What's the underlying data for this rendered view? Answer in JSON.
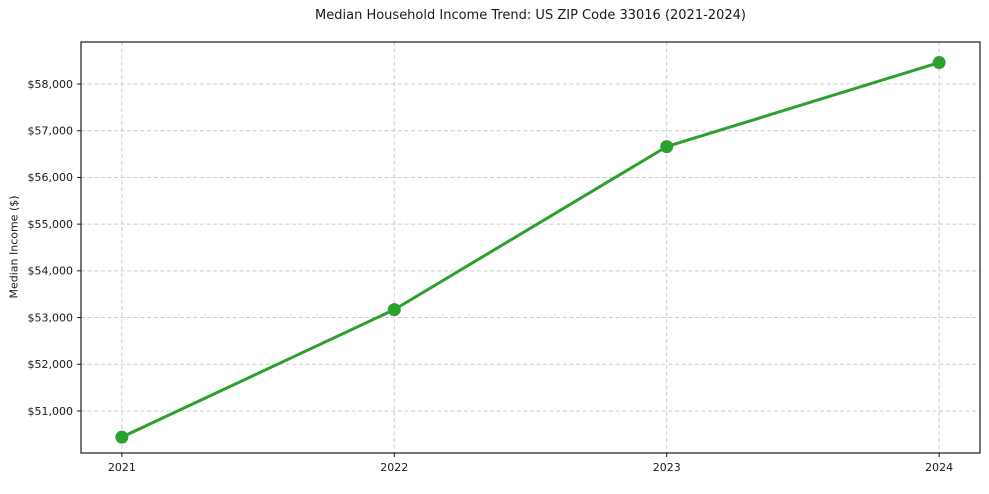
{
  "figure": {
    "background": "#ffffff",
    "frame_color": "#1a1a1a",
    "text_color": "#1a1a1a"
  },
  "chart_data": {
    "type": "line",
    "title": "Median Household Income Trend: US ZIP Code 33016 (2021-2024)",
    "xlabel": "",
    "ylabel": "Median Income ($)",
    "x": [
      2021,
      2022,
      2023,
      2024
    ],
    "series": [
      {
        "name": "Median Household Income",
        "values": [
          50440,
          53170,
          56660,
          58460
        ],
        "color": "#2ca02c",
        "marker": "circle",
        "line_width": 3,
        "marker_radius": 6.5
      }
    ],
    "xtick_labels": [
      "2021",
      "2022",
      "2023",
      "2024"
    ],
    "ytick_values": [
      51000,
      52000,
      53000,
      54000,
      55000,
      56000,
      57000,
      58000
    ],
    "ytick_labels": [
      "$51,000",
      "$52,000",
      "$53,000",
      "$54,000",
      "$55,000",
      "$56,000",
      "$57,000",
      "$58,000"
    ],
    "xlim": [
      2020.85,
      2024.15
    ],
    "ylim": [
      50100,
      58900
    ],
    "grid": true,
    "grid_style": "dashed",
    "grid_color": "#cccccc",
    "legend": false
  }
}
